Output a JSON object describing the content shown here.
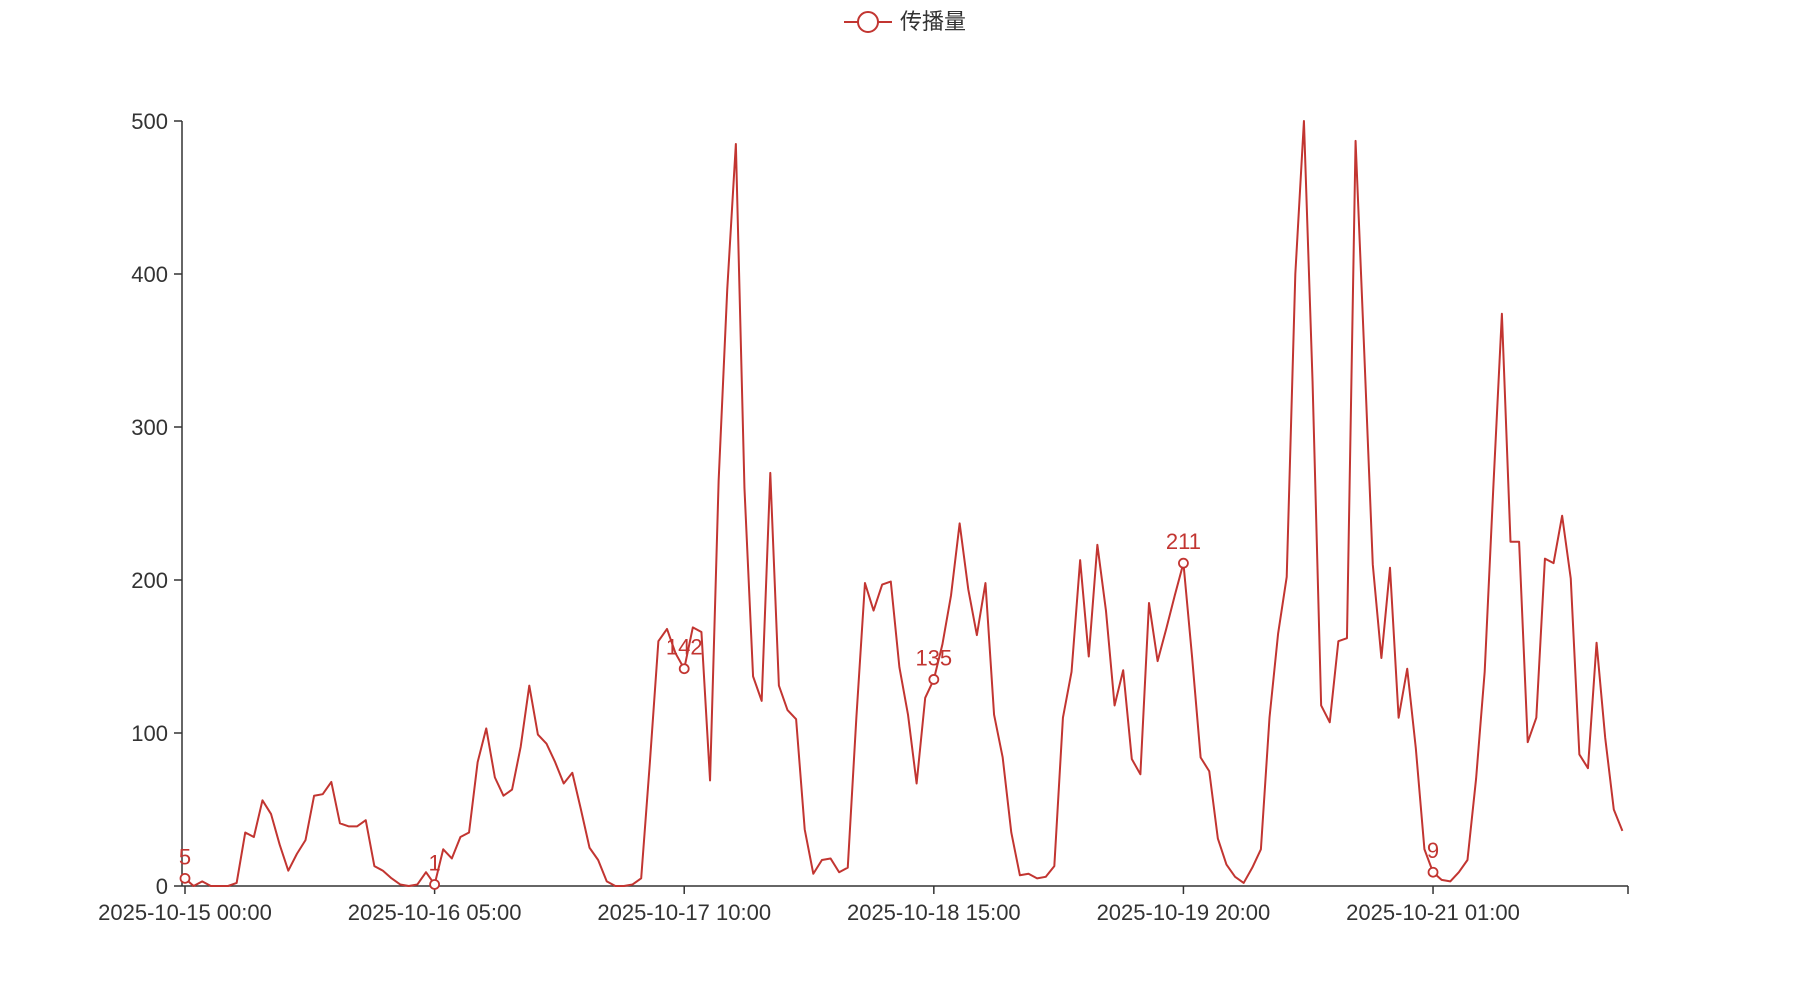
{
  "chart_data": {
    "type": "line",
    "title": "",
    "xlabel": "",
    "ylabel": "",
    "ylim": [
      0,
      500
    ],
    "yticks": [
      0,
      100,
      200,
      300,
      400,
      500
    ],
    "x_start": "2025-10-15 00:00",
    "x_interval_hours": 1,
    "xtick_labels": [
      "2025-10-15 00:00",
      "2025-10-16 05:00",
      "2025-10-17 10:00",
      "2025-10-18 15:00",
      "2025-10-19 20:00",
      "2025-10-21 01:00"
    ],
    "xtick_every": 29,
    "grid": false,
    "legend": {
      "position": "top-center",
      "entries": [
        "传播量"
      ]
    },
    "series": [
      {
        "name": "传播量",
        "color": "#c23531",
        "values": [
          5,
          0,
          3,
          0,
          0,
          0,
          2,
          35,
          32,
          56,
          47,
          27,
          10,
          21,
          30,
          59,
          60,
          68,
          41,
          39,
          39,
          43,
          13,
          10,
          5,
          1,
          0,
          1,
          9,
          1,
          24,
          18,
          32,
          35,
          81,
          103,
          71,
          59,
          63,
          91,
          131,
          99,
          93,
          81,
          67,
          74,
          50,
          25,
          17,
          3,
          0,
          0,
          1,
          5,
          80,
          160,
          168,
          152,
          142,
          169,
          166,
          69,
          265,
          390,
          485,
          260,
          137,
          121,
          270,
          131,
          115,
          109,
          37,
          8,
          17,
          18,
          9,
          12,
          110,
          198,
          180,
          197,
          199,
          143,
          112,
          67,
          123,
          135,
          158,
          190,
          237,
          194,
          164,
          198,
          112,
          84,
          35,
          7,
          8,
          5,
          6,
          13,
          110,
          140,
          213,
          150,
          223,
          180,
          118,
          141,
          83,
          73,
          185,
          147,
          168,
          190,
          211,
          150,
          84,
          75,
          31,
          14,
          6,
          2,
          12,
          24,
          110,
          165,
          202,
          400,
          500,
          330,
          118,
          107,
          160,
          162,
          487,
          350,
          210,
          149,
          208,
          110,
          142,
          90,
          24,
          9,
          4,
          3,
          9,
          17,
          70,
          140,
          260,
          374,
          225,
          225,
          94,
          110,
          214,
          211,
          242,
          201,
          86,
          77,
          159,
          97,
          50,
          36
        ],
        "labeled_points": [
          {
            "index": 0,
            "value": 5,
            "label": "5"
          },
          {
            "index": 29,
            "value": 1,
            "label": "1"
          },
          {
            "index": 58,
            "value": 142,
            "label": "142"
          },
          {
            "index": 87,
            "value": 135,
            "label": "135"
          },
          {
            "index": 116,
            "value": 211,
            "label": "211"
          },
          {
            "index": 145,
            "value": 9,
            "label": "9"
          }
        ]
      }
    ]
  }
}
